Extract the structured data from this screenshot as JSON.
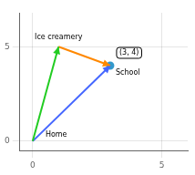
{
  "chart_data": {
    "type": "line",
    "xlim": [
      -0.5,
      6.0
    ],
    "ylim": [
      -0.5,
      6.8
    ],
    "xticks": [
      0,
      5
    ],
    "yticks": [
      0,
      5
    ],
    "grid": true,
    "series": [
      {
        "type": "line",
        "marker": "arrow",
        "color": "#22cc22",
        "x": [
          0,
          1
        ],
        "values": [
          0,
          5
        ]
      },
      {
        "type": "line",
        "marker": "arrow",
        "color": "#ff8800",
        "x": [
          1,
          3
        ],
        "values": [
          5,
          4
        ]
      },
      {
        "type": "line",
        "marker": "arrow",
        "color": "#4466ff",
        "x": [
          0,
          3
        ],
        "values": [
          0,
          4
        ]
      },
      {
        "type": "scatter",
        "marker": "circle",
        "color": "#3399cc",
        "x": [
          3
        ],
        "values": [
          4
        ]
      }
    ],
    "annotations": [
      {
        "text": "Home",
        "x": 0,
        "y": 0
      },
      {
        "text": "School",
        "x": 3,
        "y": 4
      },
      {
        "text": "Ice creamery",
        "x": 1,
        "y": 5
      },
      {
        "text": "(3, 4)",
        "x": 3,
        "y": 4,
        "box": true
      }
    ]
  }
}
